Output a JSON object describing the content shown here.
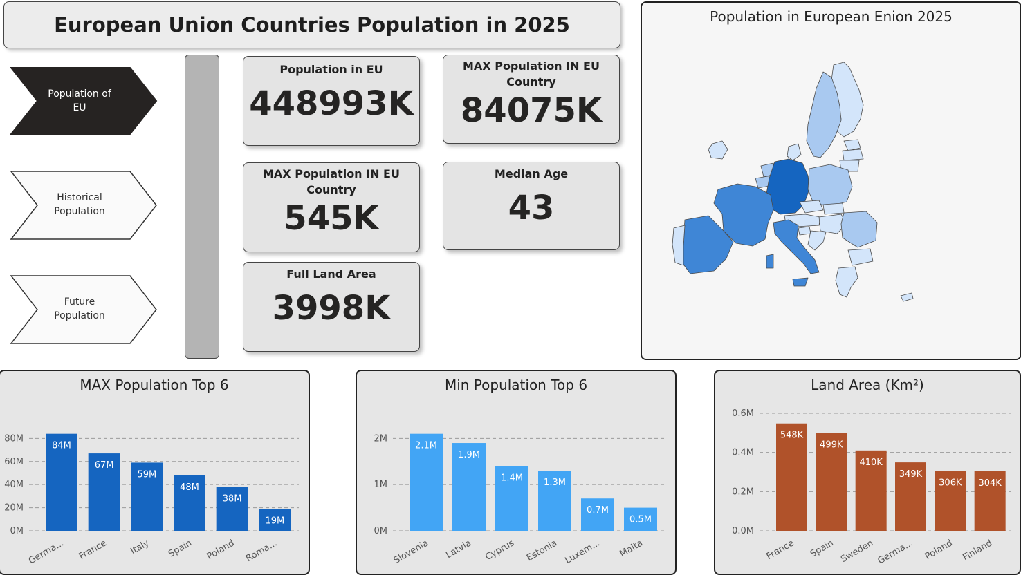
{
  "header": {
    "title": "European Union Countries Population in 2025"
  },
  "nav": {
    "items": [
      {
        "label_line1": "Population of",
        "label_line2": "EU",
        "active": true
      },
      {
        "label_line1": "Historical",
        "label_line2": "Population",
        "active": false
      },
      {
        "label_line1": "Future",
        "label_line2": "Population",
        "active": false
      }
    ]
  },
  "kpis": {
    "population_eu": {
      "title": "Population in EU",
      "value": "448993K"
    },
    "max_population": {
      "title_line1": "MAX Population IN EU",
      "title_line2": "Country",
      "value": "84075K"
    },
    "min_population": {
      "title_line1": "MAX Population IN EU",
      "title_line2": "Country",
      "value": "545K"
    },
    "median_age": {
      "title": "Median Age",
      "value": "43"
    },
    "land_area": {
      "title": "Full Land Area",
      "value": "3998K"
    }
  },
  "map": {
    "title": "Population in European Enion 2025"
  },
  "colors": {
    "max_bar": "#1565c0",
    "min_bar": "#42a5f5",
    "land_bar": "#b0522a",
    "map_high": "#1565c0",
    "map_mid": "#3f86d6",
    "map_low": "#a9c9f0",
    "map_lowest": "#d3e5fa",
    "nav_active": "#262322"
  },
  "chart_data": [
    {
      "type": "bar",
      "title": "MAX Population Top 6",
      "categories": [
        "Germa...",
        "France",
        "Italy",
        "Spain",
        "Poland",
        "Roma..."
      ],
      "values": [
        84,
        67,
        59,
        48,
        38,
        19
      ],
      "data_labels": [
        "84M",
        "67M",
        "59M",
        "48M",
        "38M",
        "19M"
      ],
      "yticks": [
        0,
        20,
        40,
        60,
        80
      ],
      "ytick_labels": [
        "0M",
        "20M",
        "40M",
        "60M",
        "80M"
      ],
      "ylim": [
        0,
        88
      ],
      "grid": true
    },
    {
      "type": "bar",
      "title": "Min Population Top 6",
      "categories": [
        "Slovenia",
        "Latvia",
        "Cyprus",
        "Estonia",
        "Luxem...",
        "Malta"
      ],
      "values": [
        2.1,
        1.9,
        1.4,
        1.3,
        0.7,
        0.5
      ],
      "data_labels": [
        "2.1M",
        "1.9M",
        "1.4M",
        "1.3M",
        "0.7M",
        "0.5M"
      ],
      "yticks": [
        0,
        1,
        2
      ],
      "ytick_labels": [
        "0M",
        "1M",
        "2M"
      ],
      "ylim": [
        0,
        2.2
      ],
      "grid": true
    },
    {
      "type": "bar",
      "title": "Land Area (Km²)",
      "categories": [
        "France",
        "Spain",
        "Sweden",
        "Germa...",
        "Poland",
        "Finland"
      ],
      "values": [
        548,
        499,
        410,
        349,
        306,
        304
      ],
      "data_labels": [
        "548K",
        "499K",
        "410K",
        "349K",
        "306K",
        "304K"
      ],
      "yticks": [
        0,
        200,
        400,
        600
      ],
      "ytick_labels": [
        "0.0M",
        "0.2M",
        "0.4M",
        "0.6M"
      ],
      "ylim": [
        0,
        600
      ],
      "grid": true
    }
  ]
}
